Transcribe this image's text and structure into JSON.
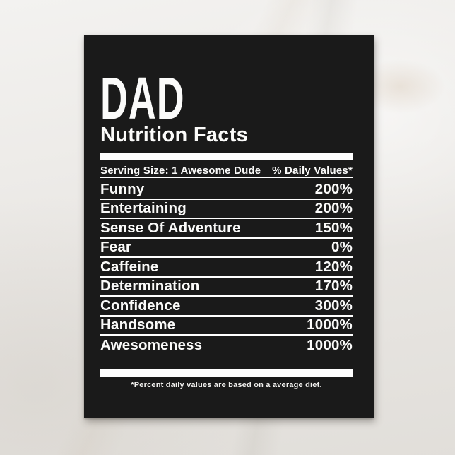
{
  "background": {
    "style": "marble",
    "base_color": "#eae8e5"
  },
  "card": {
    "bg_color": "#1a1a1a",
    "text_color": "#fafaf9",
    "rule_color": "#ffffff",
    "title": "DAD",
    "subtitle": "Nutrition Facts",
    "serving_size_label": "Serving Size: 1 Awesome Dude",
    "daily_values_header": "% Daily Values*",
    "rows": [
      {
        "label": "Funny",
        "value": "200%"
      },
      {
        "label": "Entertaining",
        "value": "200%"
      },
      {
        "label": "Sense Of Adventure",
        "value": "150%"
      },
      {
        "label": "Fear",
        "value": "0%"
      },
      {
        "label": "Caffeine",
        "value": "120%"
      },
      {
        "label": "Determination",
        "value": "170%"
      },
      {
        "label": "Confidence",
        "value": "300%"
      },
      {
        "label": "Handsome",
        "value": "1000%"
      },
      {
        "label": "Awesomeness",
        "value": "1000%"
      }
    ],
    "footnote": "*Percent daily values are based on a average diet."
  }
}
